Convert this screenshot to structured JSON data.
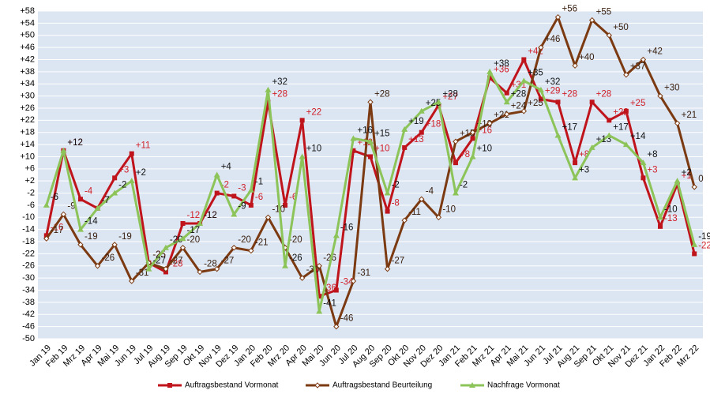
{
  "chart_data": {
    "type": "line",
    "categories": [
      "Jan 19",
      "Feb 19",
      "Mrz 19",
      "Apr 19",
      "Mai 19",
      "Jun 19",
      "Jul 19",
      "Aug 19",
      "Sep 19",
      "Okt 19",
      "Nov 19",
      "Dez 19",
      "Jan 20",
      "Feb 20",
      "Mrz 20",
      "Apr 20",
      "Mai 20",
      "Jun 20",
      "Jul 20",
      "Aug 20",
      "Sep 20",
      "Okt 20",
      "Nov 20",
      "Dez 20",
      "Jan 21",
      "Feb 21",
      "Mrz 21",
      "Apr 21",
      "Mai 21",
      "Jun 21",
      "Jul 21",
      "Aug 21",
      "Sep 21",
      "Okt 21",
      "Nov 21",
      "Dez 21",
      "Jan 22",
      "Feb 22",
      "Mrz 22"
    ],
    "series": [
      {
        "name": "Auftragsbestand Vormonat",
        "color": "#c0141c",
        "label_color": "#d0202a",
        "marker": "square",
        "values": [
          -16,
          12,
          -4,
          -7,
          3,
          11,
          -25,
          -28,
          -12,
          -12,
          -2,
          -3,
          -6,
          28,
          -6,
          22,
          -36,
          -34,
          12,
          10,
          -8,
          13,
          18,
          27,
          8,
          16,
          36,
          31,
          42,
          29,
          28,
          8,
          28,
          22,
          25,
          3,
          -13,
          1,
          -22
        ],
        "value_labels": [
          "-16",
          "+12",
          "-4",
          "-7",
          "+3",
          "+11",
          "-25",
          "-28",
          "-12",
          "-12",
          "-2",
          "-3",
          "-6",
          "+28",
          "-6",
          "+22",
          "-36",
          "-34",
          "+12",
          "+10",
          "-8",
          "+13",
          "+18",
          "+27",
          "+8",
          "+16",
          "+36",
          "+31",
          "+42",
          "+29",
          "+28",
          "+8",
          "+28",
          "+22",
          "+25",
          "+3",
          "-13",
          "+1",
          "-22"
        ]
      },
      {
        "name": "Auftragsbestand Beurteilung",
        "color": "#7b3a12",
        "label_color": "#3a2010",
        "marker": "diamond",
        "values": [
          -17,
          -9,
          -19,
          -26,
          -19,
          -31,
          -25,
          -27,
          -20,
          -28,
          -27,
          -20,
          -21,
          -10,
          -20,
          -30,
          -26,
          -46,
          -31,
          28,
          -27,
          -11,
          -4,
          -10,
          15,
          18,
          21,
          24,
          25,
          46,
          56,
          40,
          55,
          50,
          37,
          42,
          30,
          21,
          0
        ],
        "value_labels": [
          "-17",
          "-9",
          "-19",
          "-26",
          "-19",
          "-31",
          "-25",
          "-27",
          "-20",
          "-28",
          "-27",
          "-20",
          "-21",
          "-10",
          "-20",
          "-30",
          "-26",
          "-46",
          "-31",
          "+28",
          "-27",
          "-11",
          "-4",
          "-10",
          "+15",
          "+18",
          "+21",
          "+24",
          "+25",
          "+46",
          "+56",
          "+40",
          "+55",
          "+50",
          "+37",
          "+42",
          "+30",
          "+21",
          "0"
        ]
      },
      {
        "name": "Nachfrage Vormonat",
        "color": "#8cc45a",
        "label_color": "#111111",
        "marker": "triangle",
        "values": [
          -6,
          12,
          -14,
          -7,
          -2,
          2,
          -27,
          -20,
          -17,
          -12,
          4,
          -9,
          -1,
          32,
          -26,
          10,
          -41,
          -16,
          16,
          15,
          -2,
          19,
          25,
          28,
          -2,
          10,
          38,
          28,
          35,
          32,
          17,
          3,
          13,
          17,
          14,
          8,
          -10,
          2,
          -19
        ],
        "value_labels": [
          "-6",
          "+12",
          "-14",
          "-7",
          "-2",
          "+2",
          "-27",
          "-20",
          "-17",
          "-12",
          "+4",
          "-9",
          "-1",
          "+32",
          "-26",
          "+10",
          "-41",
          "-16",
          "+16",
          "+15",
          "-2",
          "+19",
          "+25",
          "+28",
          "-2",
          "+10",
          "+38",
          "+28",
          "+35",
          "+32",
          "+17",
          "+3",
          "+13",
          "+17",
          "+14",
          "+8",
          "-10",
          "+2",
          "-19"
        ]
      }
    ],
    "ylim": [
      -50,
      58
    ],
    "yticks": [
      -50,
      -46,
      -42,
      -38,
      -34,
      -30,
      -26,
      -22,
      -18,
      -14,
      -10,
      -6,
      -2,
      {
        "value": 2,
        "label": "+2"
      },
      {
        "value": 6,
        "label": "+6"
      },
      {
        "value": 10,
        "label": "+10"
      },
      {
        "value": 14,
        "label": "+14"
      },
      {
        "value": 18,
        "label": "+18"
      },
      {
        "value": 22,
        "label": "+22"
      },
      {
        "value": 26,
        "label": "+26"
      },
      {
        "value": 30,
        "label": "+30"
      },
      {
        "value": 34,
        "label": "+34"
      },
      {
        "value": 38,
        "label": "+38"
      },
      {
        "value": 42,
        "label": "+42"
      },
      {
        "value": 46,
        "label": "+46"
      },
      {
        "value": 50,
        "label": "+50"
      },
      {
        "value": 54,
        "label": "+54"
      },
      {
        "value": 58,
        "label": "+58"
      }
    ],
    "grid": true
  }
}
